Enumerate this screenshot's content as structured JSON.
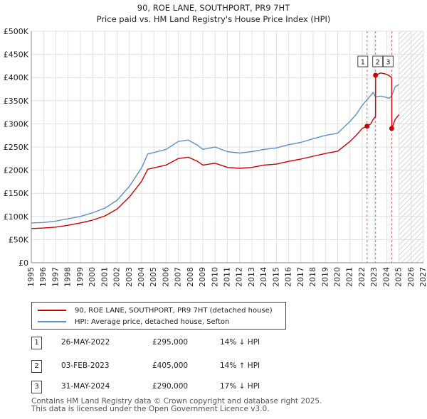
{
  "chart_data": {
    "type": "line",
    "title": "90, ROE LANE, SOUTHPORT, PR9 7HT",
    "subtitle": "Price paid vs. HM Land Registry's House Price Index (HPI)",
    "xlim": [
      1995,
      2027
    ],
    "ylim": [
      0,
      500000
    ],
    "x_ticks": [
      "1995",
      "1996",
      "1997",
      "1998",
      "1999",
      "2000",
      "2001",
      "2002",
      "2003",
      "2004",
      "2005",
      "2006",
      "2007",
      "2008",
      "2009",
      "2010",
      "2011",
      "2012",
      "2013",
      "2014",
      "2015",
      "2016",
      "2017",
      "2018",
      "2019",
      "2020",
      "2021",
      "2022",
      "2023",
      "2024",
      "2025",
      "2026",
      "2027"
    ],
    "y_ticks": [
      0,
      50000,
      100000,
      150000,
      200000,
      250000,
      300000,
      350000,
      400000,
      450000,
      500000
    ],
    "y_tick_labels": [
      "£0",
      "£50K",
      "£100K",
      "£150K",
      "£200K",
      "£250K",
      "£300K",
      "£350K",
      "£400K",
      "£450K",
      "£500K"
    ],
    "forecast_start": 2025.0,
    "series": [
      {
        "name": "HPI: Average price, detached house, Sefton",
        "color": "#5b8fd0",
        "x": [
          1995,
          1996,
          1997,
          1998,
          1999,
          2000,
          2001,
          2002,
          2003,
          2004,
          2004.5,
          2005,
          2006,
          2007,
          2007.8,
          2008.5,
          2009,
          2010,
          2011,
          2012,
          2013,
          2014,
          2015,
          2016,
          2017,
          2018,
          2019,
          2020,
          2021,
          2021.5,
          2022,
          2022.4,
          2022.9,
          2023.1,
          2023.5,
          2024,
          2024.2,
          2024.4,
          2024.7,
          2025
        ],
        "y": [
          86000,
          87000,
          90000,
          95000,
          100000,
          108000,
          118000,
          135000,
          165000,
          205000,
          235000,
          238000,
          245000,
          262000,
          265000,
          255000,
          245000,
          250000,
          240000,
          237000,
          240000,
          245000,
          248000,
          255000,
          260000,
          268000,
          275000,
          280000,
          305000,
          320000,
          340000,
          352000,
          368000,
          358000,
          360000,
          357000,
          355000,
          360000,
          380000,
          385000
        ]
      },
      {
        "name": "90, ROE LANE, SOUTHPORT, PR9 7HT (detached house)",
        "color": "#cc0000",
        "x": [
          1995,
          1996,
          1997,
          1998,
          1999,
          2000,
          2001,
          2002,
          2003,
          2004,
          2004.5,
          2005,
          2006,
          2007,
          2007.8,
          2008.5,
          2009,
          2010,
          2011,
          2012,
          2013,
          2014,
          2015,
          2016,
          2017,
          2018,
          2019,
          2020,
          2021,
          2021.5,
          2022,
          2022.4,
          2022.42,
          2022.7,
          2022.9,
          2023.09,
          2023.1,
          2023.5,
          2024,
          2024.2,
          2024.41,
          2024.42,
          2024.7,
          2025
        ],
        "y": [
          74000,
          75000,
          77000,
          81000,
          86000,
          92000,
          101000,
          116000,
          142000,
          176000,
          202000,
          205000,
          211000,
          225000,
          228000,
          220000,
          211000,
          215000,
          206000,
          204000,
          206000,
          211000,
          213000,
          219000,
          224000,
          230000,
          236000,
          241000,
          262000,
          275000,
          290000,
          295000,
          295000,
          300000,
          310000,
          316000,
          405000,
          410000,
          407000,
          404000,
          400000,
          290000,
          310000,
          320000
        ]
      }
    ],
    "transactions": [
      {
        "label": "1",
        "date": "26-MAY-2022",
        "x": 2022.4,
        "price": "£295,000",
        "value": 295000,
        "hpi": "14% ↓ HPI"
      },
      {
        "label": "2",
        "date": "03-FEB-2023",
        "x": 2023.09,
        "price": "£405,000",
        "value": 405000,
        "hpi": "14% ↑ HPI"
      },
      {
        "label": "3",
        "date": "31-MAY-2024",
        "x": 2024.41,
        "price": "£290,000",
        "value": 290000,
        "hpi": "17% ↓ HPI"
      }
    ]
  },
  "legend": {
    "property_label": "90, ROE LANE, SOUTHPORT, PR9 7HT (detached house)",
    "hpi_label": "HPI: Average price, detached house, Sefton"
  },
  "footer": {
    "line1": "Contains HM Land Registry data © Crown copyright and database right 2025.",
    "line2": "This data is licensed under the Open Government Licence v3.0."
  }
}
